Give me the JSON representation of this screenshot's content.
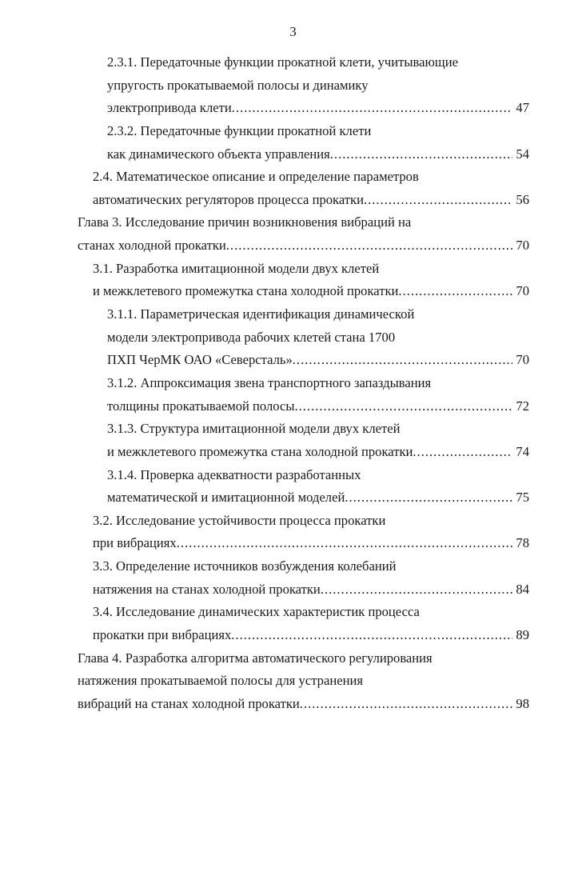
{
  "page_number": "3",
  "entries": [
    {
      "level": 2,
      "lines": [
        "2.3.1. Передаточные функции прокатной клети, учитывающие",
        "упругость прокатываемой полосы и динамику",
        "электропривода клети"
      ],
      "page": "47"
    },
    {
      "level": 2,
      "lines": [
        "2.3.2. Передаточные функции прокатной клети",
        "как динамического объекта управления"
      ],
      "page": "54"
    },
    {
      "level": 1,
      "lines": [
        "2.4. Математическое описание и определение параметров",
        "автоматических регуляторов процесса прокатки"
      ],
      "page": "56"
    },
    {
      "level": 0,
      "lines": [
        "Глава 3. Исследование причин возникновения вибраций на",
        "станах холодной прокатки"
      ],
      "page": "70"
    },
    {
      "level": 1,
      "lines": [
        "3.1. Разработка имитационной модели двух клетей",
        "и межклетевого промежутка стана холодной прокатки"
      ],
      "page": "70"
    },
    {
      "level": 2,
      "lines": [
        "3.1.1. Параметрическая идентификация динамической",
        "модели электропривода рабочих клетей стана 1700",
        "ПХП ЧерМК ОАО «Северсталь»"
      ],
      "page": "70"
    },
    {
      "level": 2,
      "lines": [
        "3.1.2. Аппроксимация звена транспортного запаздывания",
        "толщины прокатываемой полосы"
      ],
      "page": "72"
    },
    {
      "level": 2,
      "lines": [
        "3.1.3. Структура имитационной модели двух клетей",
        "и межклетевого промежутка стана холодной прокатки"
      ],
      "page": "74"
    },
    {
      "level": 2,
      "lines": [
        "3.1.4. Проверка адекватности разработанных",
        "математической и имитационной моделей"
      ],
      "page": "75"
    },
    {
      "level": 1,
      "lines": [
        "3.2. Исследование устойчивости процесса прокатки",
        "при вибрациях"
      ],
      "page": "78"
    },
    {
      "level": 1,
      "lines": [
        "3.3. Определение источников возбуждения колебаний",
        "натяжения на станах холодной прокатки"
      ],
      "page": "84"
    },
    {
      "level": 1,
      "lines": [
        "3.4. Исследование динамических характеристик процесса",
        "прокатки при вибрациях"
      ],
      "page": "89"
    },
    {
      "level": 0,
      "lines": [
        "Глава 4. Разработка алгоритма автоматического регулирования",
        "натяжения прокатываемой полосы для устранения",
        "вибраций на станах холодной прокатки"
      ],
      "page": "98"
    }
  ]
}
